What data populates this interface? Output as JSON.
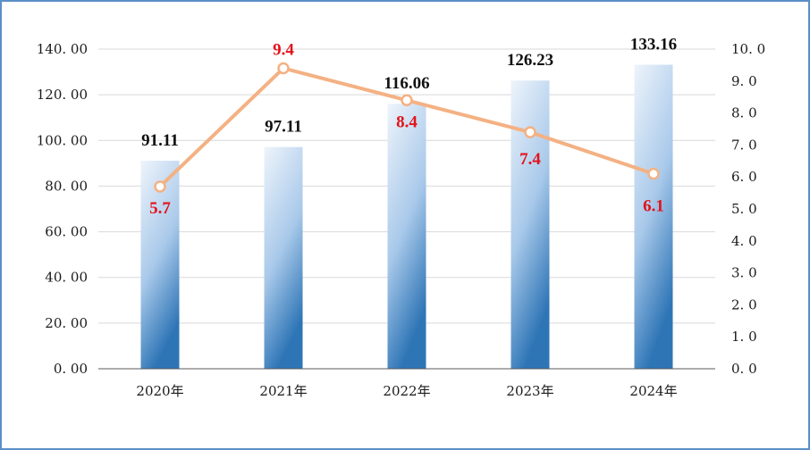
{
  "chart_data": {
    "type": "bar",
    "categories": [
      "2020年",
      "2021年",
      "2022年",
      "2023年",
      "2024年"
    ],
    "series": [
      {
        "type": "bar",
        "axis": "left",
        "values": [
          91.11,
          97.11,
          116.06,
          126.23,
          133.16
        ]
      },
      {
        "type": "line",
        "axis": "right",
        "values": [
          5.7,
          9.4,
          8.4,
          7.4,
          6.1
        ]
      }
    ],
    "y_left": {
      "lim": [
        0,
        140
      ],
      "ticks": [
        "0. 00",
        "20. 00",
        "40. 00",
        "60. 00",
        "80. 00",
        "100. 00",
        "120. 00",
        "140. 00"
      ]
    },
    "y_right": {
      "lim": [
        0,
        10
      ],
      "ticks": [
        "0. 0",
        "1. 0",
        "2. 0",
        "3. 0",
        "4. 0",
        "5. 0",
        "6. 0",
        "7. 0",
        "8. 0",
        "9. 0",
        "10. 0"
      ]
    },
    "bar_labels": [
      "91.11",
      "97.11",
      "116.06",
      "126.23",
      "133.16"
    ],
    "line_labels": [
      "5.7",
      "9.4",
      "8.4",
      "7.4",
      "6.1"
    ],
    "grid": true,
    "legend": "none",
    "colors": {
      "bar_top": "#eef4fb",
      "bar_bottom": "#2e75b6",
      "line": "#f4b183",
      "line_label": "#e3121b",
      "grid": "#d9d9d9",
      "axis": "#595959",
      "frame": "#5b8fc7"
    }
  }
}
